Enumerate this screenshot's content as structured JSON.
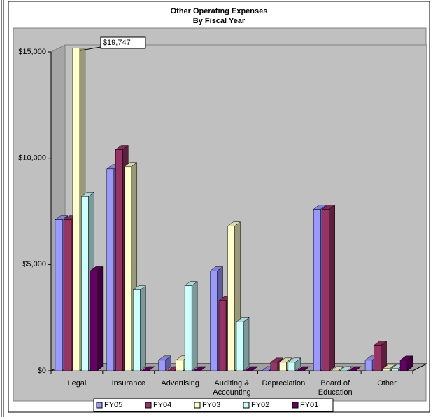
{
  "chart_data": {
    "type": "bar3d",
    "title": "Other Operating Expenses",
    "subtitle": "By Fiscal Year",
    "categories": [
      "Legal",
      "Insurance",
      "Advertising",
      "Auditing & Accounting",
      "Depreciation",
      "Board of Education",
      "Other"
    ],
    "series": [
      {
        "name": "FY05",
        "color": "#9999ff",
        "values": [
          7100,
          9500,
          500,
          4700,
          0,
          7600,
          500
        ]
      },
      {
        "name": "FY04",
        "color": "#993366",
        "values": [
          7100,
          10400,
          0,
          3300,
          400,
          7600,
          1200
        ]
      },
      {
        "name": "FY03",
        "color": "#ffffcc",
        "values": [
          19747,
          9600,
          500,
          6800,
          400,
          0,
          100
        ],
        "value_labels": [
          "$19,747",
          null,
          null,
          null,
          null,
          null,
          null
        ]
      },
      {
        "name": "FY02",
        "color": "#ccffff",
        "values": [
          8200,
          3800,
          4000,
          2300,
          400,
          0,
          100
        ]
      },
      {
        "name": "FY01",
        "color": "#660066",
        "values": [
          4700,
          0,
          0,
          0,
          0,
          0,
          500
        ]
      }
    ],
    "ylim": [
      0,
      15000
    ],
    "yticks": [
      {
        "value": 0,
        "label": "$0"
      },
      {
        "value": 5000,
        "label": "$5,000"
      },
      {
        "value": 10000,
        "label": "$10,000"
      },
      {
        "value": 15000,
        "label": "$15,000"
      }
    ],
    "legend": "bottom"
  }
}
